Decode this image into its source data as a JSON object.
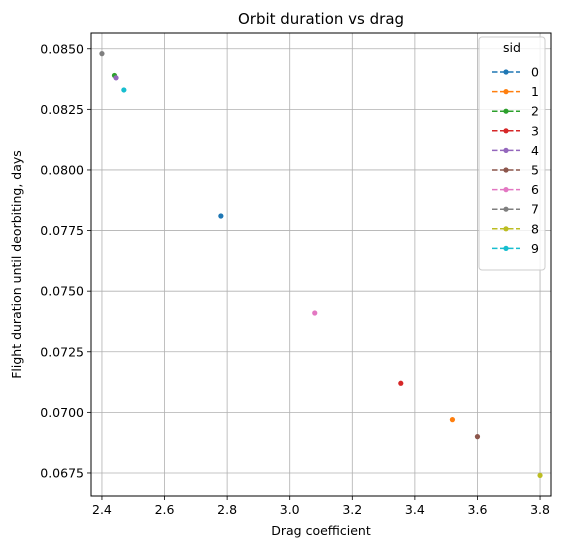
{
  "chart_data": {
    "type": "scatter",
    "title": "Orbit duration vs drag",
    "xlabel": "Drag coefficient",
    "ylabel": "Flight duration until deorbiting, days",
    "xlim": [
      2.365,
      3.835
    ],
    "ylim": [
      0.06655,
      0.08565
    ],
    "xticks": [
      2.4,
      2.6,
      2.8,
      3.0,
      3.2,
      3.4,
      3.6,
      3.8
    ],
    "xtick_labels": [
      "2.4",
      "2.6",
      "2.8",
      "3.0",
      "3.2",
      "3.4",
      "3.6",
      "3.8"
    ],
    "yticks": [
      0.0675,
      0.07,
      0.0725,
      0.075,
      0.0775,
      0.08,
      0.0825,
      0.085
    ],
    "ytick_labels": [
      "0.0675",
      "0.0700",
      "0.0725",
      "0.0750",
      "0.0775",
      "0.0800",
      "0.0825",
      "0.0850"
    ],
    "grid": true,
    "legend": {
      "title": "sid",
      "placement": "top-right"
    },
    "series": [
      {
        "name": "0",
        "color": "#1f77b4",
        "x": [
          2.78
        ],
        "y": [
          0.0781
        ]
      },
      {
        "name": "1",
        "color": "#ff7f0e",
        "x": [
          3.52
        ],
        "y": [
          0.0697
        ]
      },
      {
        "name": "2",
        "color": "#2ca02c",
        "x": [
          2.44
        ],
        "y": [
          0.0839
        ]
      },
      {
        "name": "3",
        "color": "#d62728",
        "x": [
          3.355
        ],
        "y": [
          0.0712
        ]
      },
      {
        "name": "4",
        "color": "#9467bd",
        "x": [
          2.445
        ],
        "y": [
          0.0838
        ]
      },
      {
        "name": "5",
        "color": "#8c564b",
        "x": [
          3.6
        ],
        "y": [
          0.069
        ]
      },
      {
        "name": "6",
        "color": "#e377c2",
        "x": [
          3.08
        ],
        "y": [
          0.0741
        ]
      },
      {
        "name": "7",
        "color": "#7f7f7f",
        "x": [
          2.4
        ],
        "y": [
          0.0848
        ]
      },
      {
        "name": "8",
        "color": "#bcbd22",
        "x": [
          3.8
        ],
        "y": [
          0.0674
        ]
      },
      {
        "name": "9",
        "color": "#17becf",
        "x": [
          2.47
        ],
        "y": [
          0.0833
        ]
      }
    ]
  }
}
